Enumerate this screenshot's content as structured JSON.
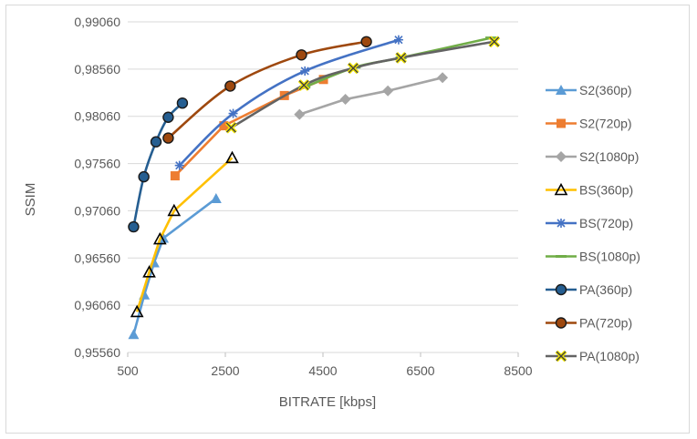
{
  "chart_data": {
    "type": "line",
    "xlabel": "BITRATE [kbps]",
    "ylabel": "SSIM",
    "xlim": [
      500,
      8500
    ],
    "ylim": [
      0.9556,
      0.9906
    ],
    "x_ticks": [
      "500",
      "2500",
      "4500",
      "6500",
      "8500"
    ],
    "y_ticks": [
      "0,95560",
      "0,96060",
      "0,96560",
      "0,97060",
      "0,97560",
      "0,98060",
      "0,98560",
      "0,99060"
    ],
    "grid": "horizontal",
    "legend_position": "right",
    "series": [
      {
        "name": "S2(360p)",
        "color": "#5b9bd5",
        "marker": "triangle",
        "smooth": false,
        "points": [
          [
            620,
            0.9575
          ],
          [
            840,
            0.9617
          ],
          [
            1040,
            0.9651
          ],
          [
            1230,
            0.9677
          ],
          [
            2310,
            0.9719
          ]
        ]
      },
      {
        "name": "S2(720p)",
        "color": "#ed7d31",
        "marker": "square",
        "smooth": false,
        "points": [
          [
            1470,
            0.9743
          ],
          [
            2470,
            0.9796
          ],
          [
            3710,
            0.9828
          ],
          [
            4510,
            0.9845
          ]
        ]
      },
      {
        "name": "S2(1080p)",
        "color": "#a5a5a5",
        "marker": "diamond",
        "smooth": false,
        "points": [
          [
            4020,
            0.9808
          ],
          [
            4960,
            0.9824
          ],
          [
            5830,
            0.9833
          ],
          [
            6950,
            0.9847
          ]
        ]
      },
      {
        "name": "BS(360p)",
        "color": "#ffc000",
        "marker": "open-triangle",
        "smooth": false,
        "points": [
          [
            690,
            0.9599
          ],
          [
            940,
            0.9641
          ],
          [
            1160,
            0.9676
          ],
          [
            1450,
            0.9706
          ],
          [
            2640,
            0.9762
          ]
        ]
      },
      {
        "name": "BS(720p)",
        "color": "#4472c4",
        "marker": "star",
        "smooth": true,
        "points": [
          [
            1560,
            0.9754
          ],
          [
            2660,
            0.9809
          ],
          [
            4130,
            0.9854
          ],
          [
            6050,
            0.9887
          ]
        ]
      },
      {
        "name": "BS(1080p)",
        "color": "#70ad47",
        "marker": "dash",
        "smooth": true,
        "points": [
          [
            4130,
            0.9837
          ],
          [
            5160,
            0.9858
          ],
          [
            6100,
            0.9868
          ],
          [
            7940,
            0.9889
          ]
        ]
      },
      {
        "name": "PA(360p)",
        "color": "#255e91",
        "marker": "circle",
        "smooth": true,
        "points": [
          [
            620,
            0.9689
          ],
          [
            830,
            0.9742
          ],
          [
            1080,
            0.9779
          ],
          [
            1330,
            0.9805
          ],
          [
            1620,
            0.982
          ]
        ]
      },
      {
        "name": "PA(720p)",
        "color": "#9e480e",
        "marker": "circle",
        "smooth": true,
        "points": [
          [
            1330,
            0.9783
          ],
          [
            2600,
            0.9838
          ],
          [
            4060,
            0.9871
          ],
          [
            5390,
            0.9885
          ]
        ]
      },
      {
        "name": "PA(1080p)",
        "color": "#636363",
        "marker": "x",
        "smooth": true,
        "points": [
          [
            2620,
            0.9794
          ],
          [
            4110,
            0.9839
          ],
          [
            5120,
            0.9857
          ],
          [
            6100,
            0.9868
          ],
          [
            8010,
            0.9885
          ]
        ]
      }
    ]
  }
}
